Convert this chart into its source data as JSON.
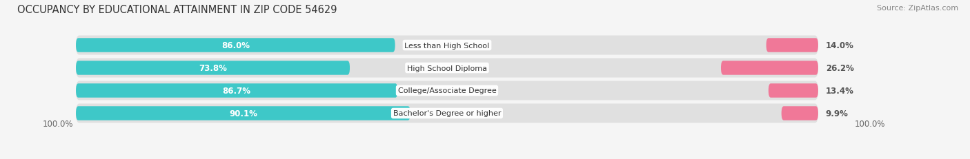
{
  "title": "OCCUPANCY BY EDUCATIONAL ATTAINMENT IN ZIP CODE 54629",
  "source": "Source: ZipAtlas.com",
  "categories": [
    "Less than High School",
    "High School Diploma",
    "College/Associate Degree",
    "Bachelor's Degree or higher"
  ],
  "owner_pct": [
    86.0,
    73.8,
    86.7,
    90.1
  ],
  "renter_pct": [
    14.0,
    26.2,
    13.4,
    9.9
  ],
  "owner_color": "#3ec8c8",
  "renter_color": "#f07898",
  "pill_bg_color": "#e0e0e0",
  "label_color_owner": "#ffffff",
  "label_color_renter": "#555555",
  "axis_label_left": "100.0%",
  "axis_label_right": "100.0%",
  "title_fontsize": 10.5,
  "source_fontsize": 8,
  "bar_label_fontsize": 8.5,
  "category_fontsize": 8,
  "legend_fontsize": 9,
  "background_color": "#f5f5f5",
  "figwidth": 14.06,
  "figheight": 2.32,
  "dpi": 100
}
